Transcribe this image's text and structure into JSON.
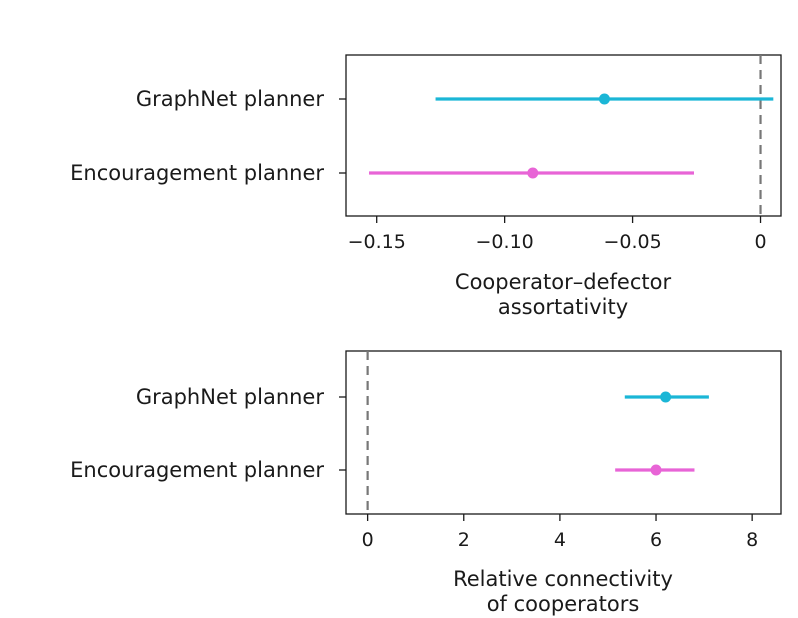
{
  "chart_data": [
    {
      "type": "forest",
      "categories": [
        "GraphNet planner",
        "Encouragement planner"
      ],
      "series": [
        {
          "category": "GraphNet planner",
          "estimate": -0.061,
          "ci": [
            -0.127,
            0.005
          ],
          "color": "#1bb6d6"
        },
        {
          "category": "Encouragement planner",
          "estimate": -0.089,
          "ci": [
            -0.153,
            -0.026
          ],
          "color": "#e864d6"
        }
      ],
      "xlabel": [
        "Cooperator–defector",
        "assortativity"
      ],
      "xlim": [
        -0.162,
        0.008
      ],
      "xticks": [
        {
          "value": -0.15,
          "label": "−0.15"
        },
        {
          "value": -0.1,
          "label": "−0.10"
        },
        {
          "value": -0.05,
          "label": "−0.05"
        },
        {
          "value": 0,
          "label": "0"
        }
      ],
      "reference_line": 0,
      "grid": false,
      "legend": "none"
    },
    {
      "type": "forest",
      "categories": [
        "GraphNet planner",
        "Encouragement planner"
      ],
      "series": [
        {
          "category": "GraphNet planner",
          "estimate": 6.2,
          "ci": [
            5.35,
            7.1
          ],
          "color": "#1bb6d6"
        },
        {
          "category": "Encouragement planner",
          "estimate": 6.0,
          "ci": [
            5.15,
            6.8
          ],
          "color": "#e864d6"
        }
      ],
      "xlabel": [
        "Relative connectivity",
        "of cooperators"
      ],
      "xlim": [
        -0.45,
        8.6
      ],
      "xticks": [
        {
          "value": 0,
          "label": "0"
        },
        {
          "value": 2,
          "label": "2"
        },
        {
          "value": 4,
          "label": "4"
        },
        {
          "value": 6,
          "label": "6"
        },
        {
          "value": 8,
          "label": "8"
        }
      ],
      "reference_line": 0,
      "grid": false,
      "legend": "none"
    }
  ]
}
